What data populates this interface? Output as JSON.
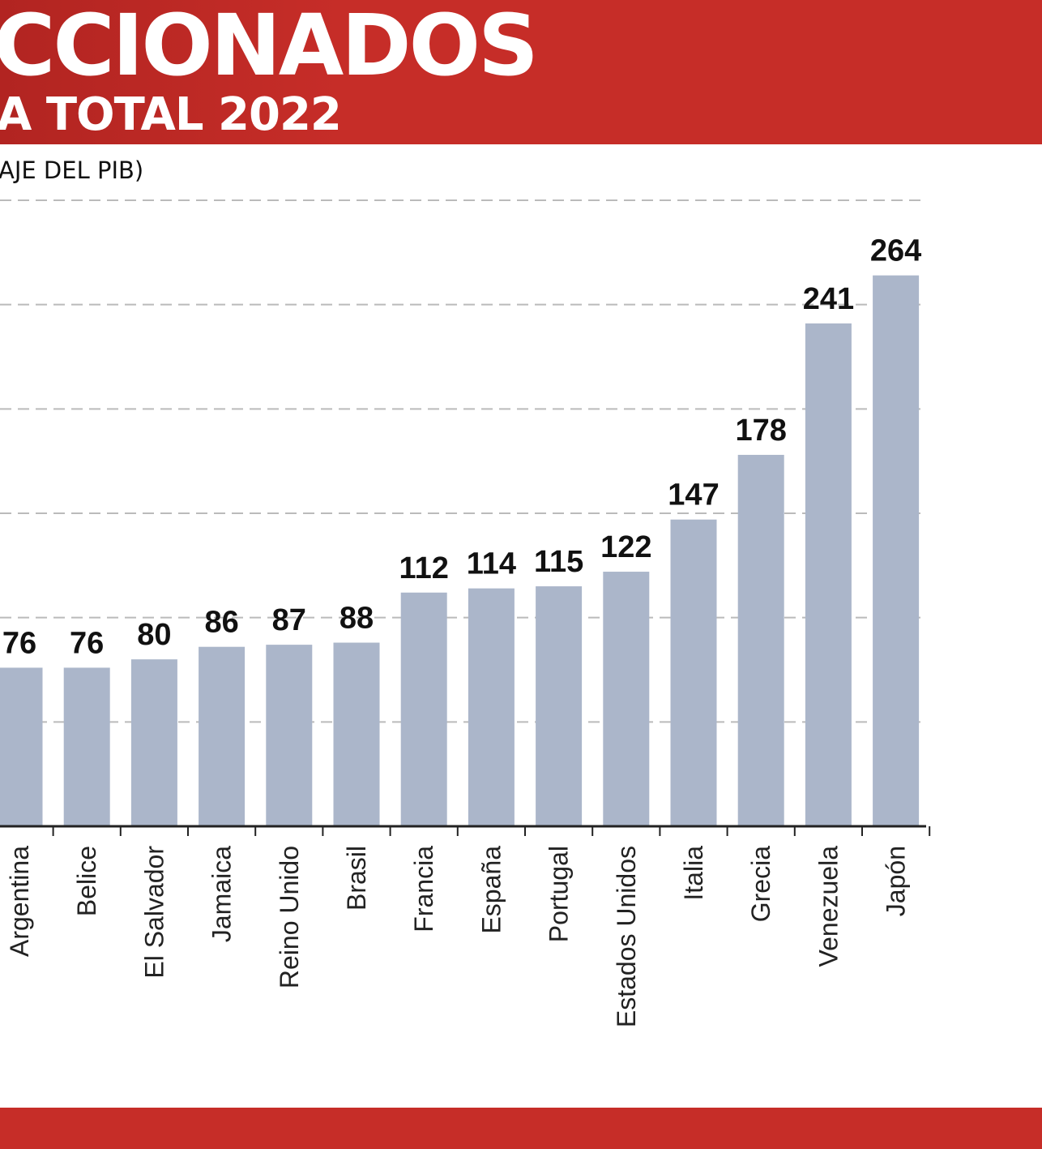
{
  "header": {
    "title": "CCIONADOS",
    "subtitle": "A TOTAL 2022",
    "unit_note": "AJE DEL PIB)"
  },
  "colors": {
    "brand_red": "#c62d28",
    "bar": "#abb6ca",
    "grid": "#bbbbbb",
    "axis": "#222222"
  },
  "chart_data": {
    "type": "bar",
    "title": "",
    "xlabel": "",
    "ylabel": "",
    "ylim": [
      0,
      300
    ],
    "grid": true,
    "categories": [
      "Argentina",
      "Belice",
      "El Salvador",
      "Jamaica",
      "Reino Unido",
      "Brasil",
      "Francia",
      "España",
      "Portugal",
      "Estados Unidos",
      "Italia",
      "Grecia",
      "Venezuela",
      "Japón"
    ],
    "values": [
      76,
      76,
      80,
      86,
      87,
      88,
      112,
      114,
      115,
      122,
      147,
      178,
      241,
      264
    ],
    "data_labels": [
      "76",
      "76",
      "80",
      "86",
      "87",
      "88",
      "112",
      "114",
      "115",
      "122",
      "147",
      "178",
      "241",
      "264"
    ]
  }
}
